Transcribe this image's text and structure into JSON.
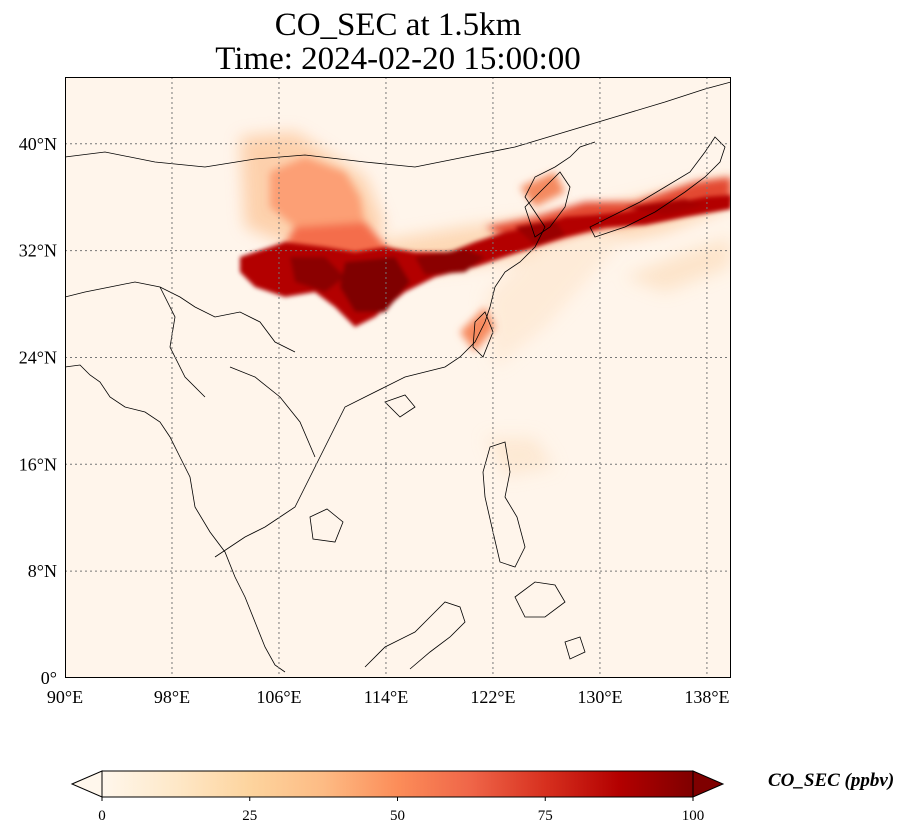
{
  "title_line1": "CO_SEC at 1.5km",
  "title_line2": "Time: 2024-02-20 15:00:00",
  "map": {
    "extent": {
      "lon_min": 90,
      "lon_max": 139.8,
      "lat_min": 0,
      "lat_max": 45
    },
    "lon_ticks": [
      {
        "value": 90,
        "label": "90°E"
      },
      {
        "value": 98,
        "label": "98°E"
      },
      {
        "value": 106,
        "label": "106°E"
      },
      {
        "value": 114,
        "label": "114°E"
      },
      {
        "value": 122,
        "label": "122°E"
      },
      {
        "value": 130,
        "label": "130°E"
      },
      {
        "value": 138,
        "label": "138°E"
      }
    ],
    "lat_ticks": [
      {
        "value": 0,
        "label": "0°"
      },
      {
        "value": 8,
        "label": "8°N"
      },
      {
        "value": 16,
        "label": "16°N"
      },
      {
        "value": 24,
        "label": "24°N"
      },
      {
        "value": 32,
        "label": "32°N"
      },
      {
        "value": 40,
        "label": "40°N"
      }
    ],
    "gridlines": true,
    "background_color": "#fff5eb",
    "coastline_color": "#000000"
  },
  "colorbar": {
    "label": "CO_SEC (ppbv)",
    "ticks": [
      {
        "value": 0,
        "label": "0"
      },
      {
        "value": 25,
        "label": "25"
      },
      {
        "value": 50,
        "label": "50"
      },
      {
        "value": 75,
        "label": "75"
      },
      {
        "value": 100,
        "label": "100"
      }
    ],
    "range": [
      0,
      100
    ],
    "extend": "both",
    "colormap": "OrRd"
  }
}
